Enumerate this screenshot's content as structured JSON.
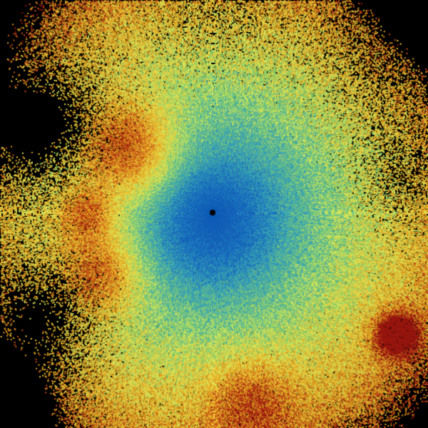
{
  "image": {
    "kind": "radar-scan",
    "background": "#000000",
    "palette": [
      "#1560b8",
      "#2a8fc4",
      "#45b0a8",
      "#86cf6e",
      "#d8e85a",
      "#f0c838",
      "#e09a1e",
      "#c8501a",
      "#a01810"
    ]
  }
}
